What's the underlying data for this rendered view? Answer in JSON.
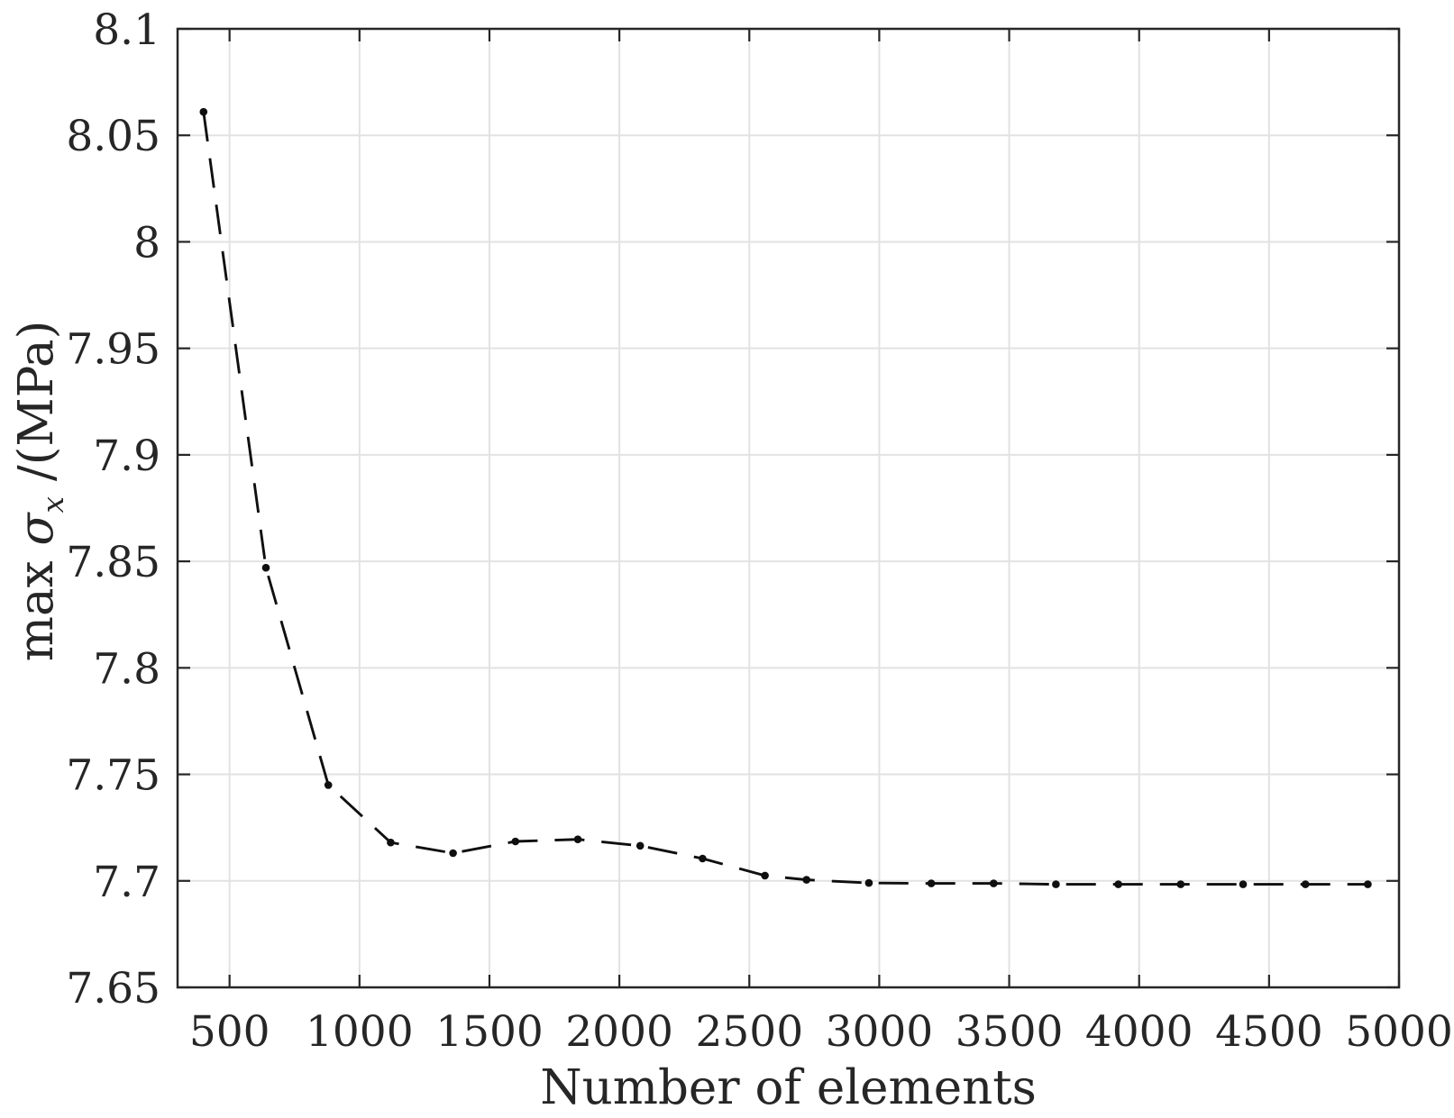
{
  "chart_data": {
    "type": "line",
    "title": "",
    "xlabel": "Number of elements",
    "ylabel": "max σ_x /(MPa)",
    "ylabel_parts": {
      "prefix": "max ",
      "sigma": "σ",
      "subscript": "x",
      "suffix": " /(MPa)"
    },
    "series": [
      {
        "x": [
          400,
          640,
          880,
          1120,
          1360,
          1600,
          1840,
          2080,
          2320,
          2560,
          2720,
          2960,
          3200,
          3440,
          3680,
          3920,
          4160,
          4400,
          4640,
          4880
        ],
        "y": [
          8.061,
          7.847,
          7.745,
          7.718,
          7.713,
          7.7185,
          7.7195,
          7.7165,
          7.7105,
          7.7025,
          7.7005,
          7.699,
          7.6988,
          7.6988,
          7.6984,
          7.6984,
          7.6984,
          7.6984,
          7.6984,
          7.6984
        ],
        "line_style": "dashed",
        "marker": "filled-circle",
        "color": "#0f0f0f"
      }
    ],
    "xlim": [
      300,
      5000
    ],
    "ylim": [
      7.65,
      8.1
    ],
    "xticks": [
      500,
      1000,
      1500,
      2000,
      2500,
      3000,
      3500,
      4000,
      4500,
      5000
    ],
    "xtick_labels": [
      "500",
      "1000",
      "1500",
      "2000",
      "2500",
      "3000",
      "3500",
      "4000",
      "4500",
      "5000"
    ],
    "yticks": [
      7.65,
      7.7,
      7.75,
      7.8,
      7.85,
      7.9,
      7.95,
      8.0,
      8.05,
      8.1
    ],
    "ytick_labels": [
      "7.65",
      "7.7",
      "7.75",
      "7.8",
      "7.85",
      "7.9",
      "7.95",
      "8",
      "8.05",
      "8.1"
    ],
    "grid": true,
    "legend": null,
    "colors": {
      "axis": "#262626",
      "grid": "#e2e2e2",
      "text": "#262626",
      "background": "#ffffff"
    }
  }
}
